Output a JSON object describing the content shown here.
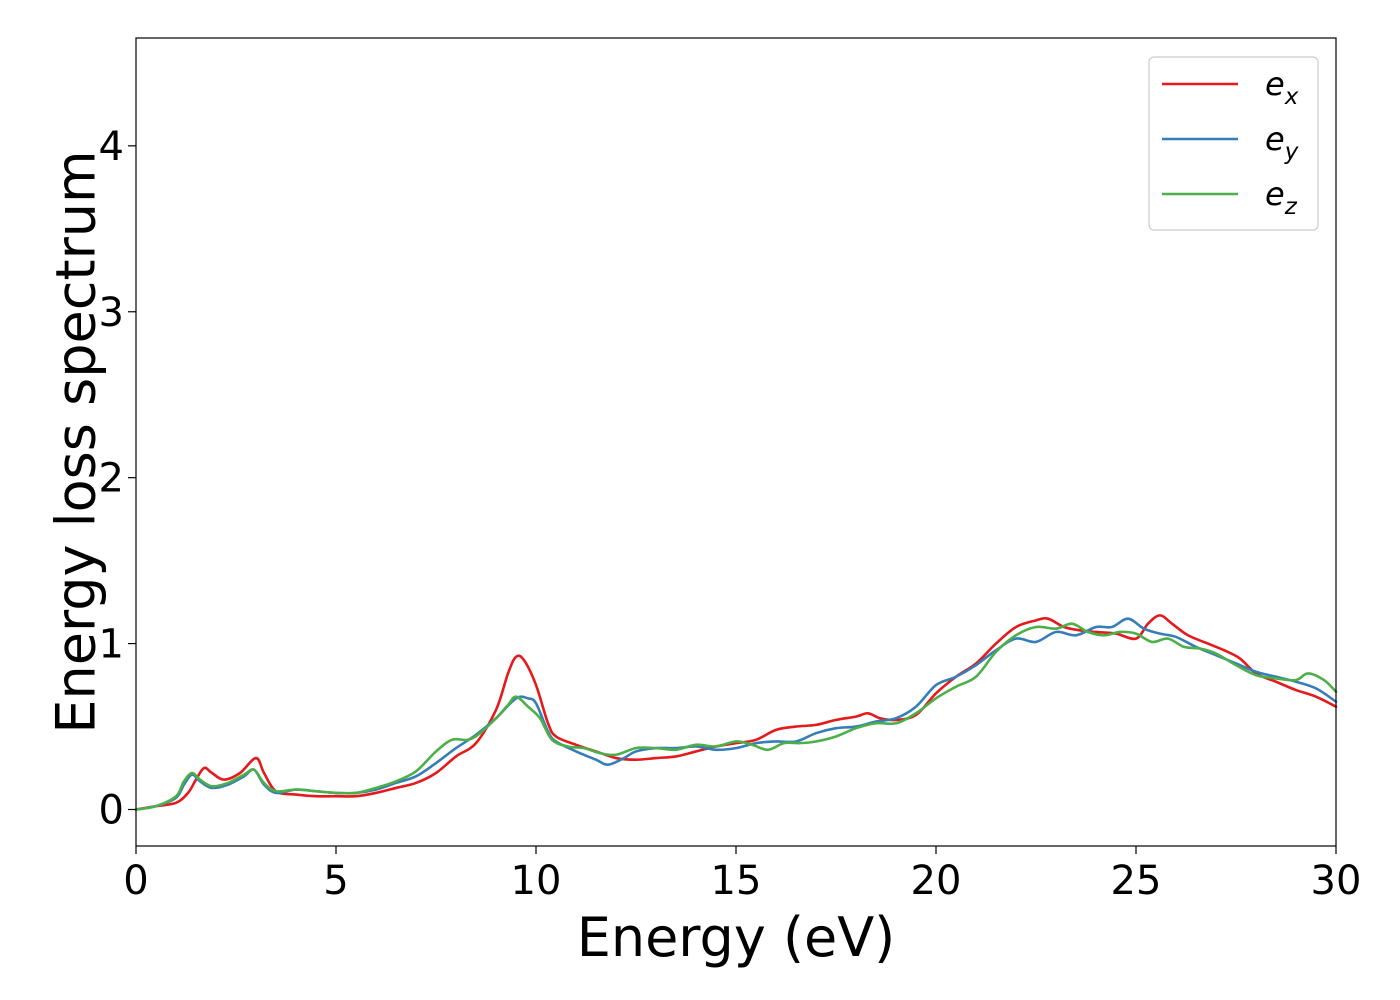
{
  "chart_data": {
    "type": "line",
    "title": "",
    "xlabel": "Energy (eV)",
    "ylabel": "Energy loss spectrum",
    "xlim": [
      0,
      30
    ],
    "ylim": [
      -0.22,
      4.65
    ],
    "xticks": [
      0,
      5,
      10,
      15,
      20,
      25,
      30
    ],
    "yticks": [
      0,
      1,
      2,
      3,
      4
    ],
    "grid": false,
    "legend_position": "top-right",
    "series": [
      {
        "name": "e",
        "subscript": "x",
        "color": "#e41a1c",
        "points": [
          [
            0,
            0
          ],
          [
            0.5,
            0.02
          ],
          [
            1,
            0.04
          ],
          [
            1.3,
            0.1
          ],
          [
            1.5,
            0.18
          ],
          [
            1.7,
            0.25
          ],
          [
            1.9,
            0.22
          ],
          [
            2.2,
            0.18
          ],
          [
            2.6,
            0.22
          ],
          [
            3,
            0.31
          ],
          [
            3.2,
            0.22
          ],
          [
            3.5,
            0.11
          ],
          [
            4,
            0.09
          ],
          [
            4.5,
            0.08
          ],
          [
            5,
            0.08
          ],
          [
            5.5,
            0.08
          ],
          [
            6,
            0.1
          ],
          [
            6.5,
            0.13
          ],
          [
            7,
            0.16
          ],
          [
            7.5,
            0.22
          ],
          [
            8,
            0.32
          ],
          [
            8.5,
            0.4
          ],
          [
            9,
            0.6
          ],
          [
            9.3,
            0.82
          ],
          [
            9.5,
            0.92
          ],
          [
            9.7,
            0.9
          ],
          [
            10,
            0.75
          ],
          [
            10.3,
            0.52
          ],
          [
            10.5,
            0.44
          ],
          [
            11,
            0.39
          ],
          [
            11.5,
            0.35
          ],
          [
            12,
            0.31
          ],
          [
            12.5,
            0.3
          ],
          [
            13,
            0.31
          ],
          [
            13.5,
            0.32
          ],
          [
            14,
            0.35
          ],
          [
            14.5,
            0.38
          ],
          [
            15,
            0.4
          ],
          [
            15.5,
            0.42
          ],
          [
            16,
            0.48
          ],
          [
            16.5,
            0.5
          ],
          [
            17,
            0.51
          ],
          [
            17.5,
            0.54
          ],
          [
            18,
            0.56
          ],
          [
            18.3,
            0.58
          ],
          [
            18.6,
            0.55
          ],
          [
            19,
            0.54
          ],
          [
            19.5,
            0.57
          ],
          [
            20,
            0.7
          ],
          [
            20.5,
            0.8
          ],
          [
            21,
            0.88
          ],
          [
            21.5,
            1.0
          ],
          [
            22,
            1.1
          ],
          [
            22.5,
            1.14
          ],
          [
            22.8,
            1.15
          ],
          [
            23.2,
            1.1
          ],
          [
            23.6,
            1.08
          ],
          [
            24,
            1.07
          ],
          [
            24.5,
            1.06
          ],
          [
            25,
            1.03
          ],
          [
            25.3,
            1.12
          ],
          [
            25.6,
            1.17
          ],
          [
            25.9,
            1.12
          ],
          [
            26.3,
            1.05
          ],
          [
            26.8,
            1.0
          ],
          [
            27.2,
            0.96
          ],
          [
            27.6,
            0.91
          ],
          [
            28,
            0.82
          ],
          [
            28.5,
            0.77
          ],
          [
            29,
            0.72
          ],
          [
            29.5,
            0.68
          ],
          [
            30,
            0.62
          ]
        ]
      },
      {
        "name": "e",
        "subscript": "y",
        "color": "#377eb8",
        "points": [
          [
            0,
            0
          ],
          [
            0.5,
            0.02
          ],
          [
            1,
            0.07
          ],
          [
            1.2,
            0.15
          ],
          [
            1.4,
            0.21
          ],
          [
            1.6,
            0.17
          ],
          [
            1.9,
            0.13
          ],
          [
            2.3,
            0.15
          ],
          [
            2.7,
            0.2
          ],
          [
            2.95,
            0.24
          ],
          [
            3.2,
            0.15
          ],
          [
            3.5,
            0.1
          ],
          [
            4,
            0.12
          ],
          [
            4.5,
            0.11
          ],
          [
            5,
            0.1
          ],
          [
            5.5,
            0.1
          ],
          [
            6,
            0.12
          ],
          [
            6.5,
            0.16
          ],
          [
            7,
            0.2
          ],
          [
            7.5,
            0.28
          ],
          [
            8,
            0.37
          ],
          [
            8.5,
            0.45
          ],
          [
            9,
            0.55
          ],
          [
            9.5,
            0.67
          ],
          [
            9.8,
            0.67
          ],
          [
            10,
            0.64
          ],
          [
            10.3,
            0.47
          ],
          [
            10.5,
            0.41
          ],
          [
            11,
            0.35
          ],
          [
            11.5,
            0.3
          ],
          [
            11.8,
            0.27
          ],
          [
            12.2,
            0.31
          ],
          [
            12.5,
            0.35
          ],
          [
            13,
            0.37
          ],
          [
            13.5,
            0.37
          ],
          [
            14,
            0.38
          ],
          [
            14.5,
            0.36
          ],
          [
            15,
            0.37
          ],
          [
            15.5,
            0.4
          ],
          [
            16,
            0.41
          ],
          [
            16.5,
            0.41
          ],
          [
            17,
            0.46
          ],
          [
            17.5,
            0.49
          ],
          [
            18,
            0.5
          ],
          [
            18.5,
            0.53
          ],
          [
            19,
            0.55
          ],
          [
            19.5,
            0.62
          ],
          [
            20,
            0.75
          ],
          [
            20.5,
            0.8
          ],
          [
            21,
            0.87
          ],
          [
            21.5,
            0.96
          ],
          [
            22,
            1.03
          ],
          [
            22.5,
            1.01
          ],
          [
            23,
            1.07
          ],
          [
            23.5,
            1.05
          ],
          [
            24,
            1.1
          ],
          [
            24.4,
            1.1
          ],
          [
            24.8,
            1.15
          ],
          [
            25.2,
            1.09
          ],
          [
            25.6,
            1.06
          ],
          [
            26,
            1.04
          ],
          [
            26.5,
            0.98
          ],
          [
            27,
            0.93
          ],
          [
            27.5,
            0.88
          ],
          [
            28,
            0.83
          ],
          [
            28.5,
            0.8
          ],
          [
            29,
            0.77
          ],
          [
            29.5,
            0.73
          ],
          [
            30,
            0.65
          ]
        ]
      },
      {
        "name": "e",
        "subscript": "z",
        "color": "#4daf4a",
        "points": [
          [
            0,
            0
          ],
          [
            0.5,
            0.02
          ],
          [
            1,
            0.08
          ],
          [
            1.2,
            0.17
          ],
          [
            1.4,
            0.22
          ],
          [
            1.6,
            0.18
          ],
          [
            1.9,
            0.14
          ],
          [
            2.3,
            0.16
          ],
          [
            2.7,
            0.21
          ],
          [
            2.95,
            0.24
          ],
          [
            3.2,
            0.16
          ],
          [
            3.5,
            0.11
          ],
          [
            4,
            0.12
          ],
          [
            4.5,
            0.11
          ],
          [
            5,
            0.1
          ],
          [
            5.5,
            0.1
          ],
          [
            6,
            0.13
          ],
          [
            6.5,
            0.17
          ],
          [
            7,
            0.23
          ],
          [
            7.5,
            0.35
          ],
          [
            7.9,
            0.42
          ],
          [
            8.3,
            0.42
          ],
          [
            8.6,
            0.46
          ],
          [
            9,
            0.55
          ],
          [
            9.3,
            0.63
          ],
          [
            9.5,
            0.68
          ],
          [
            9.8,
            0.62
          ],
          [
            10.1,
            0.55
          ],
          [
            10.4,
            0.42
          ],
          [
            10.8,
            0.38
          ],
          [
            11.2,
            0.37
          ],
          [
            11.6,
            0.34
          ],
          [
            12,
            0.33
          ],
          [
            12.5,
            0.37
          ],
          [
            13,
            0.37
          ],
          [
            13.5,
            0.36
          ],
          [
            14,
            0.39
          ],
          [
            14.5,
            0.38
          ],
          [
            15,
            0.41
          ],
          [
            15.4,
            0.39
          ],
          [
            15.8,
            0.36
          ],
          [
            16.2,
            0.4
          ],
          [
            16.6,
            0.4
          ],
          [
            17,
            0.41
          ],
          [
            17.5,
            0.44
          ],
          [
            18,
            0.49
          ],
          [
            18.5,
            0.52
          ],
          [
            19,
            0.52
          ],
          [
            19.5,
            0.58
          ],
          [
            20,
            0.67
          ],
          [
            20.5,
            0.74
          ],
          [
            21,
            0.8
          ],
          [
            21.5,
            0.95
          ],
          [
            22,
            1.05
          ],
          [
            22.5,
            1.1
          ],
          [
            23,
            1.09
          ],
          [
            23.4,
            1.12
          ],
          [
            23.8,
            1.07
          ],
          [
            24.2,
            1.05
          ],
          [
            24.6,
            1.07
          ],
          [
            25,
            1.06
          ],
          [
            25.4,
            1.01
          ],
          [
            25.8,
            1.03
          ],
          [
            26.2,
            0.98
          ],
          [
            26.6,
            0.97
          ],
          [
            27,
            0.94
          ],
          [
            27.5,
            0.87
          ],
          [
            28,
            0.81
          ],
          [
            28.5,
            0.79
          ],
          [
            29,
            0.78
          ],
          [
            29.3,
            0.82
          ],
          [
            29.7,
            0.78
          ],
          [
            30,
            0.71
          ]
        ]
      }
    ]
  }
}
